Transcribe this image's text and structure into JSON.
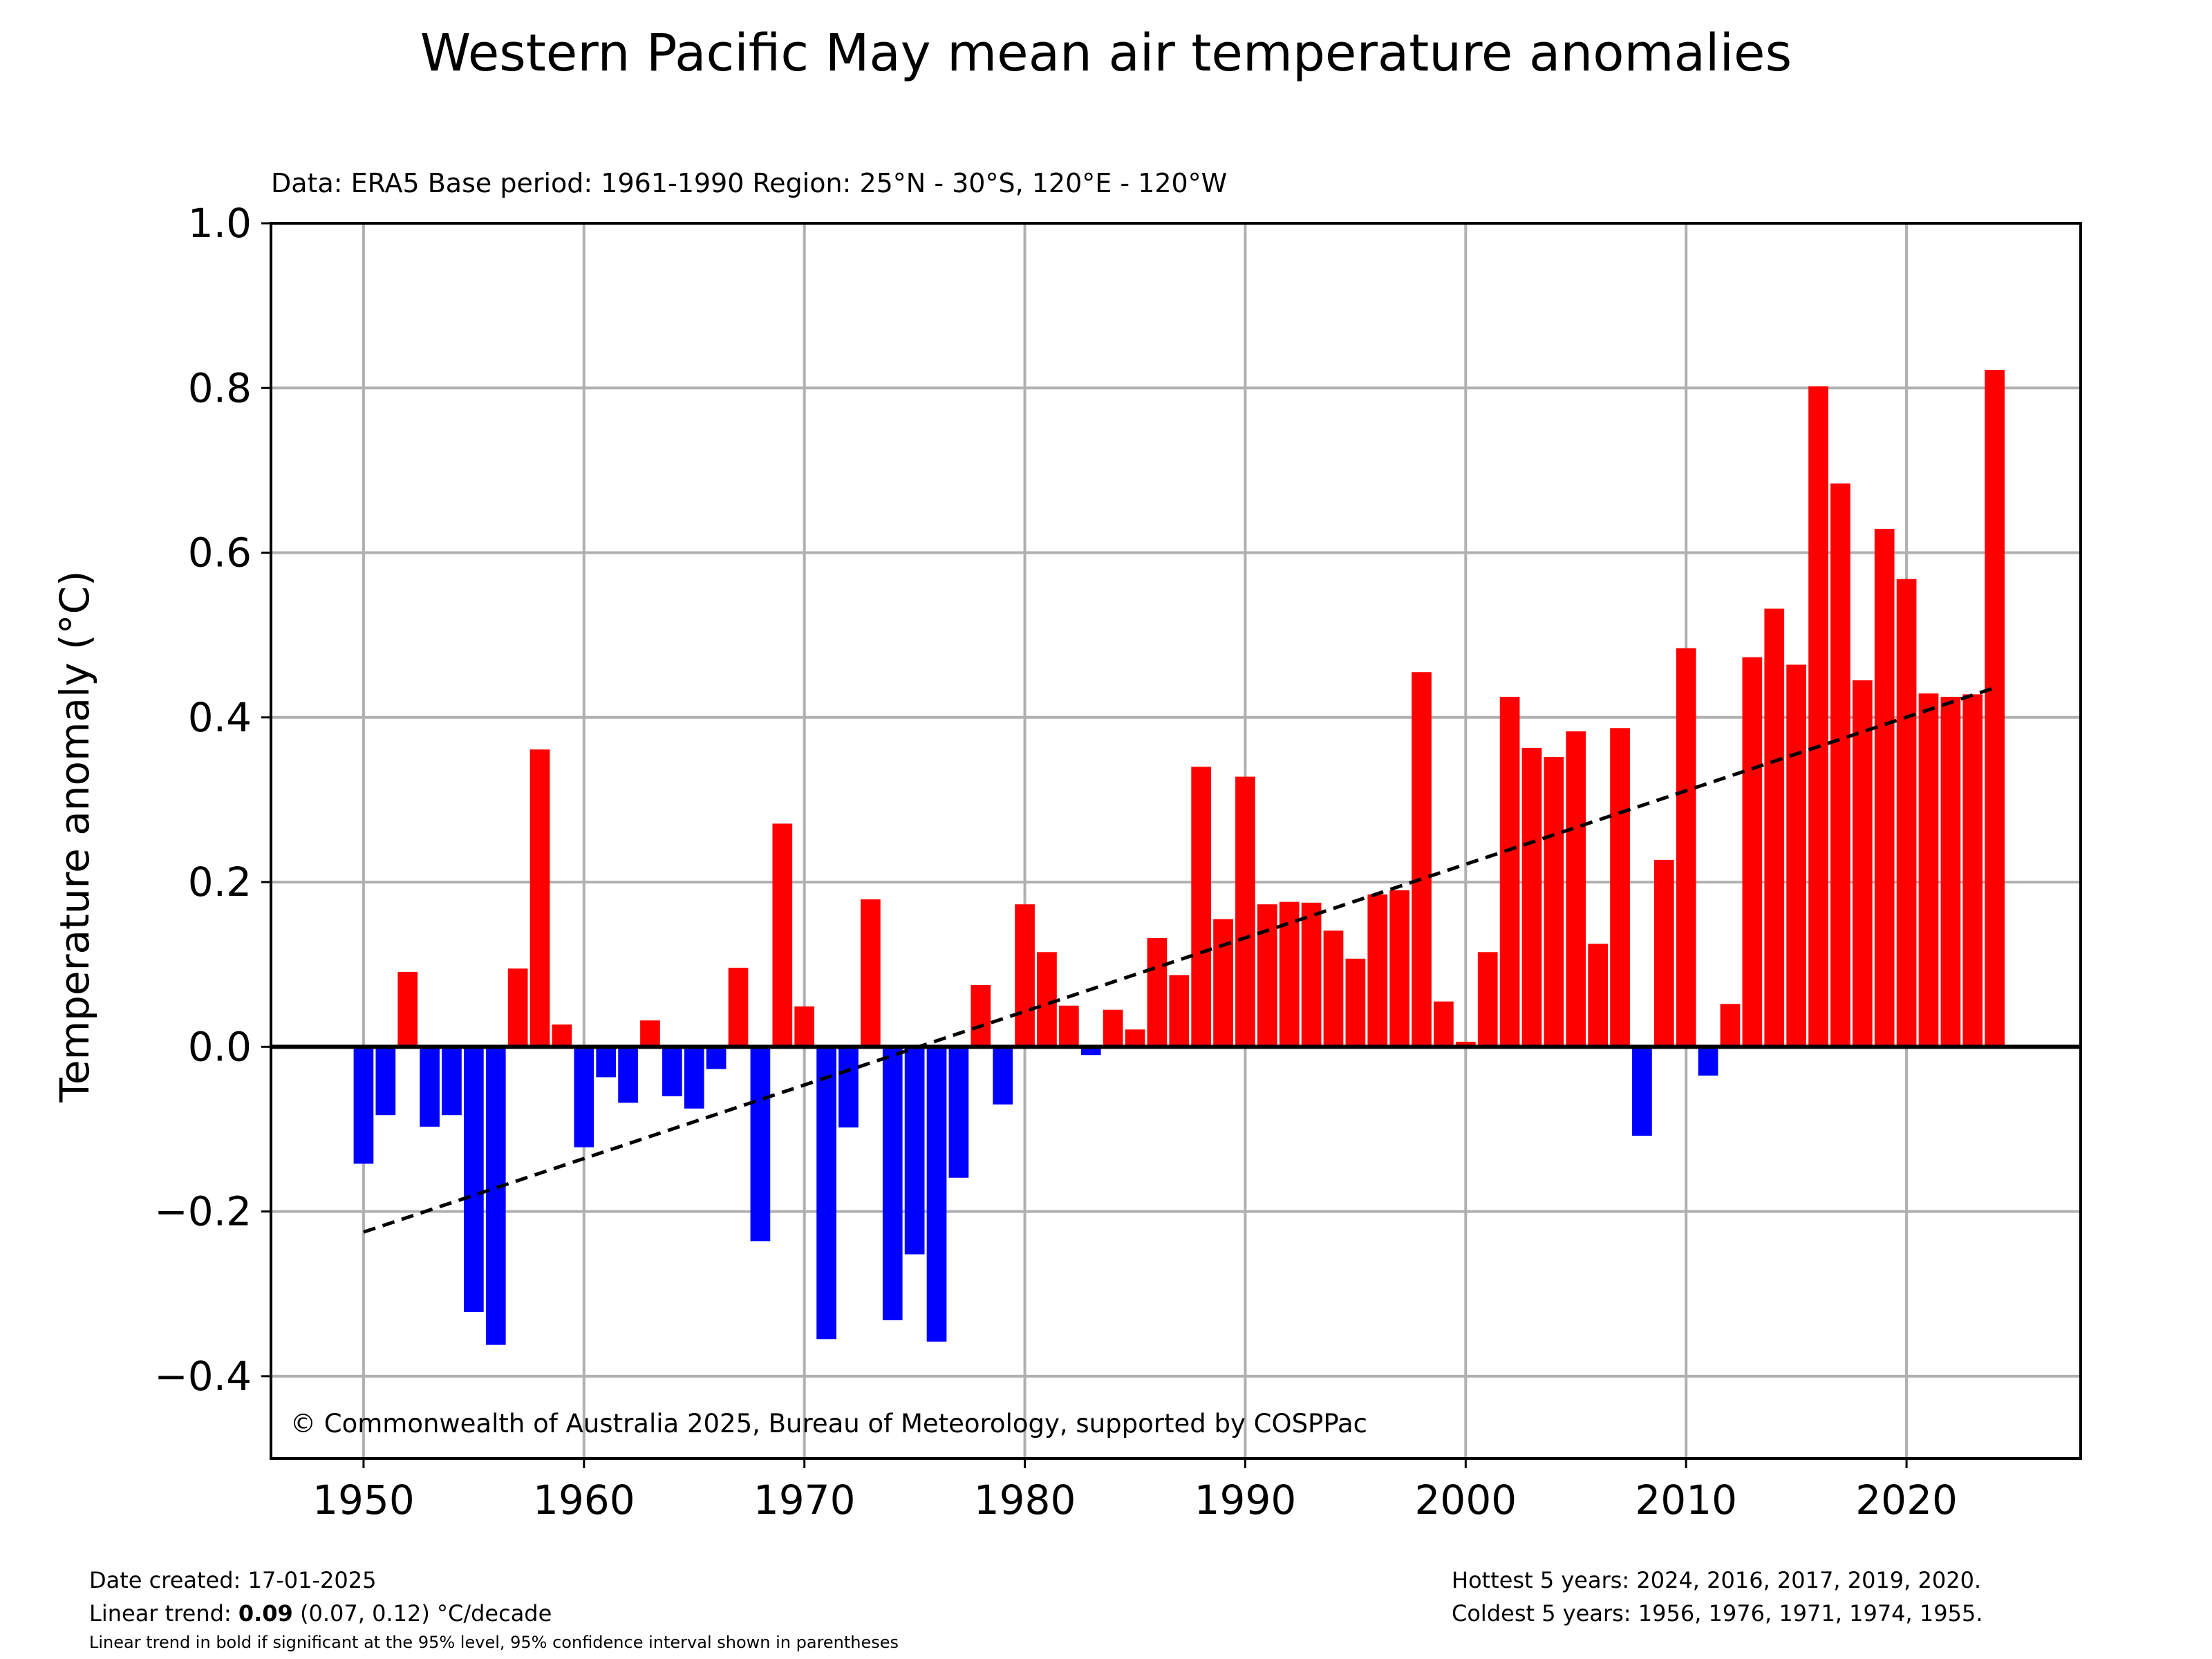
{
  "chart_data": {
    "type": "bar",
    "title": "Western Pacific May mean air temperature anomalies",
    "subtitle": "Data: ERA5  Base period: 1961-1990  Region: 25°N - 30°S, 120°E - 120°W",
    "ylabel": "Temperature anomaly (°C)",
    "xlabel": "",
    "xlim": [
      1945.8,
      2027.9
    ],
    "ylim": [
      -0.5,
      1.0
    ],
    "x_ticks": [
      1950,
      1960,
      1970,
      1980,
      1990,
      2000,
      2010,
      2020
    ],
    "y_ticks": [
      {
        "value": -0.4,
        "label": "−0.4"
      },
      {
        "value": -0.2,
        "label": "−0.2"
      },
      {
        "value": 0.0,
        "label": "0.0"
      },
      {
        "value": 0.2,
        "label": "0.2"
      },
      {
        "value": 0.4,
        "label": "0.4"
      },
      {
        "value": 0.6,
        "label": "0.6"
      },
      {
        "value": 0.8,
        "label": "0.8"
      },
      {
        "value": 1.0,
        "label": "1.0"
      }
    ],
    "grid": true,
    "positive_color": "#ff0000",
    "negative_color": "#0000ff",
    "years": [
      1950,
      1951,
      1952,
      1953,
      1954,
      1955,
      1956,
      1957,
      1958,
      1959,
      1960,
      1961,
      1962,
      1963,
      1964,
      1965,
      1966,
      1967,
      1968,
      1969,
      1970,
      1971,
      1972,
      1973,
      1974,
      1975,
      1976,
      1977,
      1978,
      1979,
      1980,
      1981,
      1982,
      1983,
      1984,
      1985,
      1986,
      1987,
      1988,
      1989,
      1990,
      1991,
      1992,
      1993,
      1994,
      1995,
      1996,
      1997,
      1998,
      1999,
      2000,
      2001,
      2002,
      2003,
      2004,
      2005,
      2006,
      2007,
      2008,
      2009,
      2010,
      2011,
      2012,
      2013,
      2014,
      2015,
      2016,
      2017,
      2018,
      2019,
      2020,
      2021,
      2022,
      2023,
      2024
    ],
    "values": [
      -0.142,
      -0.083,
      0.091,
      -0.097,
      -0.083,
      -0.322,
      -0.362,
      0.095,
      0.361,
      0.027,
      -0.122,
      -0.037,
      -0.068,
      0.032,
      -0.06,
      -0.075,
      -0.027,
      0.096,
      -0.236,
      0.271,
      0.049,
      -0.355,
      -0.098,
      0.179,
      -0.332,
      -0.252,
      -0.358,
      -0.159,
      0.075,
      -0.07,
      0.173,
      0.115,
      0.05,
      -0.01,
      0.045,
      0.021,
      0.132,
      0.087,
      0.34,
      0.155,
      0.328,
      0.173,
      0.176,
      0.175,
      0.141,
      0.107,
      0.185,
      0.19,
      0.455,
      0.055,
      0.006,
      0.115,
      0.425,
      0.363,
      0.352,
      0.383,
      0.125,
      0.387,
      -0.108,
      0.227,
      0.484,
      -0.035,
      0.052,
      0.473,
      0.532,
      0.464,
      0.802,
      0.684,
      0.445,
      0.629,
      0.568,
      0.429,
      0.425,
      0.428,
      0.822
    ],
    "trend_line": {
      "x": [
        1950,
        2024
      ],
      "y": [
        -0.225,
        0.436
      ],
      "style": "dashed"
    },
    "annotation": "© Commonwealth of Australia 2025, Bureau of Meteorology, supported by COSPPac"
  },
  "footer": {
    "date_created": "Date created: 17-01-2025",
    "trend_prefix": "Linear trend: ",
    "trend_value": "0.09",
    "trend_suffix": " (0.07, 0.12) °C/decade",
    "trend_note": "Linear trend in bold if significant at the 95% level, 95% confidence interval shown in parentheses",
    "hottest": "Hottest 5 years: 2024, 2016, 2017, 2019, 2020.",
    "coldest": "Coldest 5 years: 1956, 1976, 1971, 1974, 1955."
  }
}
